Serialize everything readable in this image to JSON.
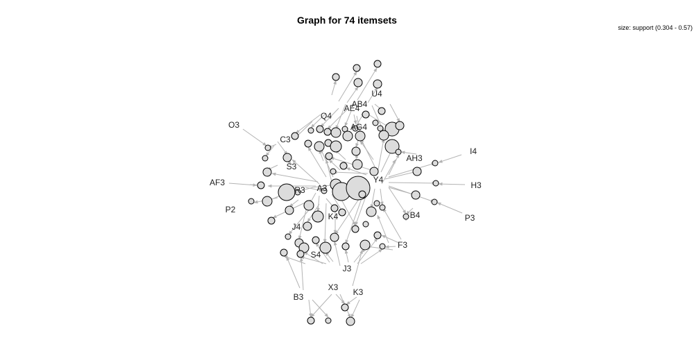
{
  "title": "Graph for 74 itemsets",
  "size_legend": "size: support (0.304 - 0.57)",
  "colors": {
    "node_fill": "#dcdcdc",
    "node_stroke": "#000000",
    "edge": "#b3b3b3"
  },
  "items": [
    "U4",
    "AB4",
    "AE4",
    "Q4",
    "AG4",
    "O3",
    "C3",
    "S3",
    "AF3",
    "R3",
    "A3",
    "Y4",
    "AH3",
    "I4",
    "H3",
    "P2",
    "P3",
    "B4",
    "K4",
    "J4",
    "F3",
    "S4",
    "J3",
    "X3",
    "K3",
    "B3"
  ]
}
